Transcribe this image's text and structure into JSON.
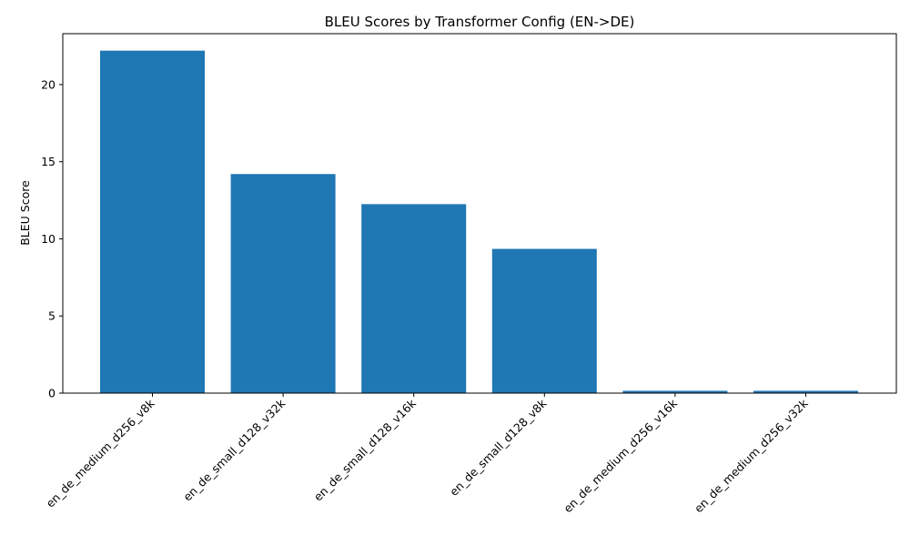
{
  "chart_data": {
    "type": "bar",
    "title": "BLEU Scores by Transformer Config (EN->DE)",
    "xlabel": "",
    "ylabel": "BLEU Score",
    "categories": [
      "en_de_medium_d256_v8k",
      "en_de_small_d128_v32k",
      "en_de_small_d128_v16k",
      "en_de_small_d128_v8k",
      "en_de_medium_d256_v16k",
      "en_de_medium_d256_v32k"
    ],
    "values": [
      22.2,
      14.2,
      12.25,
      9.35,
      0.15,
      0.15
    ],
    "ylim": [
      0,
      23.3
    ],
    "yticks": [
      0,
      5,
      10,
      15,
      20
    ],
    "bar_color": "#1f77b4",
    "grid": false,
    "legend": "none"
  }
}
